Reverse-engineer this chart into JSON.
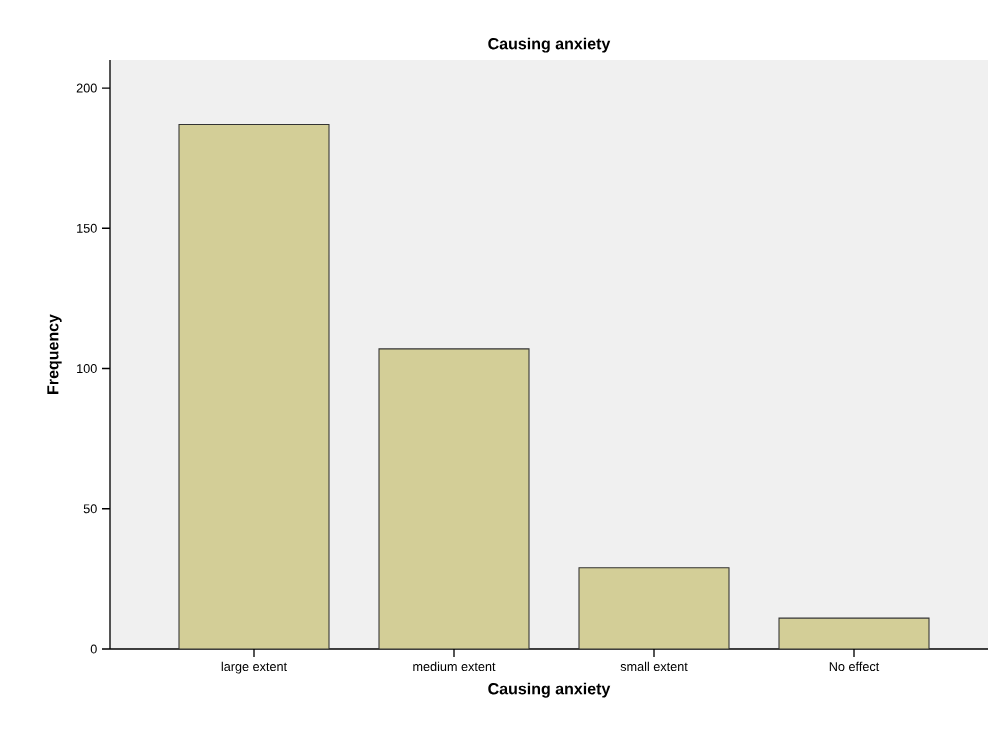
{
  "chart_data": {
    "type": "bar",
    "title": "Causing anxiety",
    "xlabel": "Causing anxiety",
    "ylabel": "Frequency",
    "categories": [
      "large extent",
      "medium extent",
      "small extent",
      "No effect"
    ],
    "values": [
      187,
      107,
      29,
      11
    ],
    "color": "#d3ce97",
    "ylim": [
      0,
      210
    ],
    "yticks": [
      0,
      50,
      100,
      150,
      200
    ],
    "grid": false
  }
}
